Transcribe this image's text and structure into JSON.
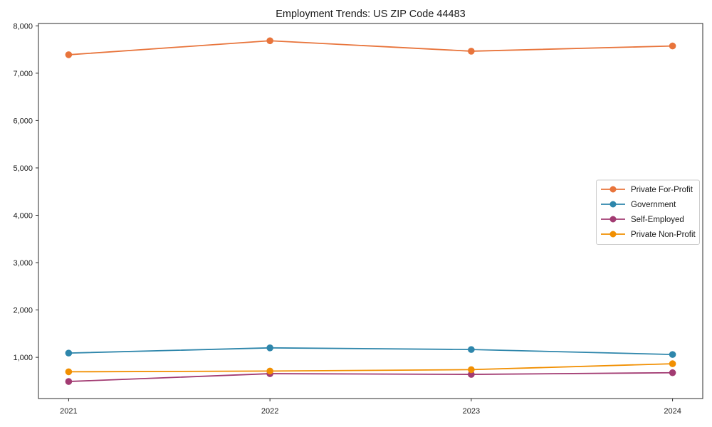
{
  "chart_data": {
    "type": "line",
    "title": "Employment Trends: US ZIP Code 44483",
    "x": [
      2021,
      2022,
      2023,
      2024
    ],
    "xticklabels": [
      "2021",
      "2022",
      "2023",
      "2024"
    ],
    "series": [
      {
        "name": "Private For-Profit",
        "color": "#E8743B",
        "values": [
          7390,
          7685,
          7465,
          7575
        ]
      },
      {
        "name": "Government",
        "color": "#2E86AB",
        "values": [
          1090,
          1200,
          1165,
          1060
        ]
      },
      {
        "name": "Self-Employed",
        "color": "#A23B72",
        "values": [
          490,
          655,
          640,
          675
        ]
      },
      {
        "name": "Private Non-Profit",
        "color": "#F18F01",
        "values": [
          695,
          710,
          740,
          865
        ]
      }
    ],
    "xlabel": "",
    "ylabel": "",
    "xlim": [
      2020.85,
      2024.15
    ],
    "ylim": [
      130,
      8050
    ],
    "yticks": [
      1000,
      2000,
      3000,
      4000,
      5000,
      6000,
      7000,
      8000
    ],
    "ytick_format": "thousands-comma",
    "grid": false,
    "marker": "circle",
    "legend": {
      "position": "center right",
      "border_color": "#cccccc",
      "background": "#ffffff"
    },
    "axis_color": "#2b2b2b",
    "text_color": "#1a1a1a"
  }
}
